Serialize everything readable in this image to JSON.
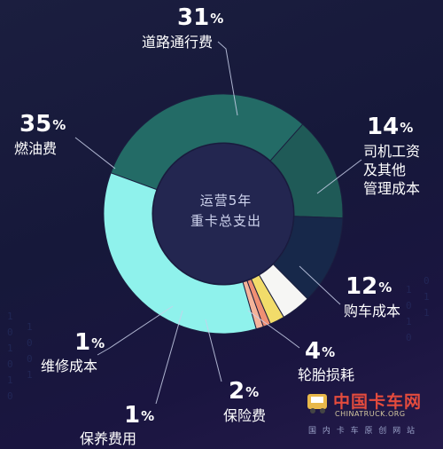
{
  "chart_data": {
    "type": "pie",
    "donut": true,
    "center_text": [
      "运营5年",
      "重卡总支出"
    ],
    "slices": [
      {
        "label": "道路通行费",
        "value": 31,
        "display": "31",
        "color": "#236b66"
      },
      {
        "label": "司机工资\n及其他\n管理成本",
        "value": 14,
        "display": "14",
        "color": "#1f5a57"
      },
      {
        "label": "购车成本",
        "value": 12,
        "display": "12",
        "color": "#17284a"
      },
      {
        "label": "轮胎损耗",
        "value": 4,
        "display": "4",
        "color": "#f6f6f4"
      },
      {
        "label": "保险费",
        "value": 2,
        "display": "2",
        "color": "#f2dc6a"
      },
      {
        "label": "保养费用",
        "value": 1,
        "display": "1",
        "color": "#f08f73"
      },
      {
        "label": "维修成本",
        "value": 1,
        "display": "1",
        "color": "#f4b39a"
      },
      {
        "label": "燃油费",
        "value": 35,
        "display": "35",
        "color": "#8ff2ec"
      }
    ],
    "percent_sign": "%"
  },
  "watermark": {
    "cn": "中国卡车网",
    "en": "CHINATRUCK.ORG",
    "sub": "国 内 卡 车 原 创 网 站"
  }
}
